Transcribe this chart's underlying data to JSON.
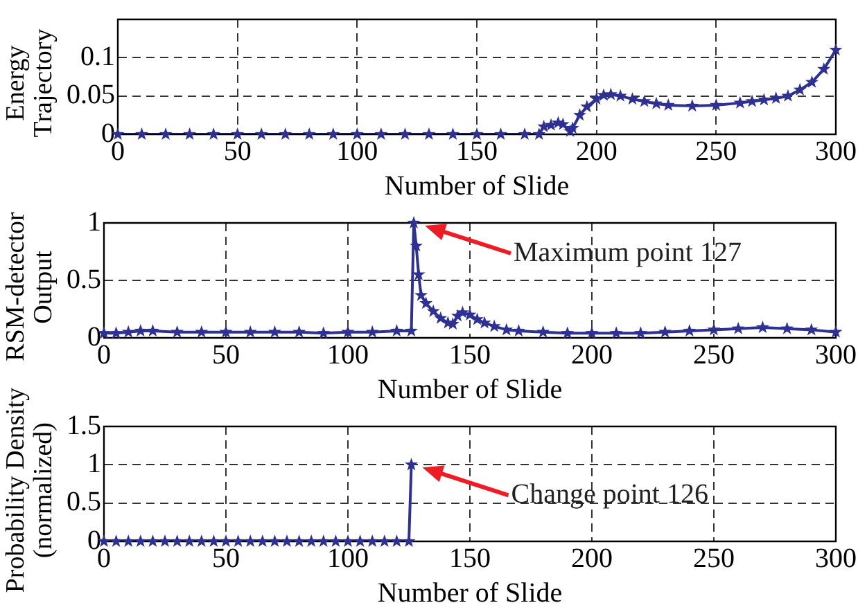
{
  "chart_data": [
    {
      "type": "line",
      "xlabel": "Number of Slide",
      "ylabel": "Energy Trajectory",
      "xlim": [
        0,
        300
      ],
      "xticks": [
        0,
        50,
        100,
        150,
        200,
        250,
        300
      ],
      "ylim": [
        0,
        0.15
      ],
      "yticks": [
        0,
        0.05,
        0.1
      ],
      "grid": true,
      "marker": "star",
      "line_style": "solid",
      "series": [
        {
          "color": "#2e3192",
          "x": [
            0,
            10,
            20,
            30,
            40,
            50,
            60,
            70,
            80,
            90,
            100,
            110,
            120,
            130,
            140,
            150,
            160,
            170,
            176,
            178,
            181,
            184,
            186,
            189,
            190,
            193,
            196,
            200,
            203,
            206,
            210,
            215,
            220,
            225,
            230,
            240,
            250,
            260,
            265,
            270,
            275,
            280,
            285,
            290,
            295,
            300
          ],
          "values": [
            0,
            0,
            0,
            0,
            0,
            0,
            0,
            0,
            0,
            0,
            0,
            0,
            0,
            0,
            0,
            0,
            0,
            0,
            0,
            0.01,
            0.012,
            0.015,
            0.013,
            0.004,
            0.008,
            0.025,
            0.036,
            0.046,
            0.051,
            0.052,
            0.05,
            0.046,
            0.043,
            0.04,
            0.038,
            0.037,
            0.038,
            0.041,
            0.043,
            0.045,
            0.047,
            0.05,
            0.058,
            0.068,
            0.085,
            0.11
          ]
        }
      ]
    },
    {
      "type": "line",
      "xlabel": "Number of Slide",
      "ylabel": "RSM-detector Output",
      "xlim": [
        0,
        300
      ],
      "xticks": [
        0,
        50,
        100,
        150,
        200,
        250,
        300
      ],
      "ylim": [
        0,
        1
      ],
      "yticks": [
        0,
        0.5,
        1
      ],
      "grid": true,
      "marker": "star",
      "line_style": "solid",
      "annotations": [
        "Maximum point 127"
      ],
      "series": [
        {
          "color": "#2e3192",
          "x": [
            0,
            5,
            10,
            15,
            20,
            30,
            40,
            50,
            60,
            70,
            80,
            90,
            100,
            110,
            120,
            126,
            127,
            128,
            129,
            130,
            132,
            135,
            138,
            141,
            143,
            145,
            147,
            150,
            153,
            156,
            160,
            165,
            170,
            180,
            190,
            200,
            210,
            220,
            230,
            240,
            250,
            260,
            270,
            280,
            290,
            300
          ],
          "values": [
            0.04,
            0.04,
            0.05,
            0.06,
            0.06,
            0.05,
            0.05,
            0.05,
            0.05,
            0.05,
            0.05,
            0.04,
            0.05,
            0.05,
            0.06,
            0.06,
            1,
            0.8,
            0.55,
            0.37,
            0.3,
            0.23,
            0.17,
            0.13,
            0.12,
            0.19,
            0.22,
            0.2,
            0.16,
            0.13,
            0.1,
            0.07,
            0.06,
            0.05,
            0.04,
            0.04,
            0.04,
            0.04,
            0.05,
            0.06,
            0.07,
            0.08,
            0.09,
            0.08,
            0.07,
            0.05
          ]
        }
      ]
    },
    {
      "type": "line",
      "xlabel": "Number of Slide",
      "ylabel": "Probability Density (normalized)",
      "xlim": [
        0,
        300
      ],
      "xticks": [
        0,
        50,
        100,
        150,
        200,
        250,
        300
      ],
      "ylim": [
        0,
        1.5
      ],
      "yticks": [
        0,
        0.5,
        1,
        1.5
      ],
      "grid": true,
      "marker": "star",
      "line_style": "solid",
      "annotations": [
        "Change point 126"
      ],
      "series": [
        {
          "color": "#2e3192",
          "x": [
            0,
            5,
            10,
            15,
            20,
            25,
            30,
            35,
            40,
            45,
            50,
            55,
            60,
            65,
            70,
            75,
            80,
            85,
            90,
            95,
            100,
            105,
            110,
            115,
            120,
            125,
            126
          ],
          "values": [
            0,
            0,
            0,
            0,
            0,
            0,
            0,
            0,
            0,
            0,
            0,
            0,
            0,
            0,
            0,
            0,
            0,
            0,
            0,
            0,
            0,
            0,
            0,
            0,
            0,
            0,
            1
          ]
        }
      ]
    }
  ]
}
